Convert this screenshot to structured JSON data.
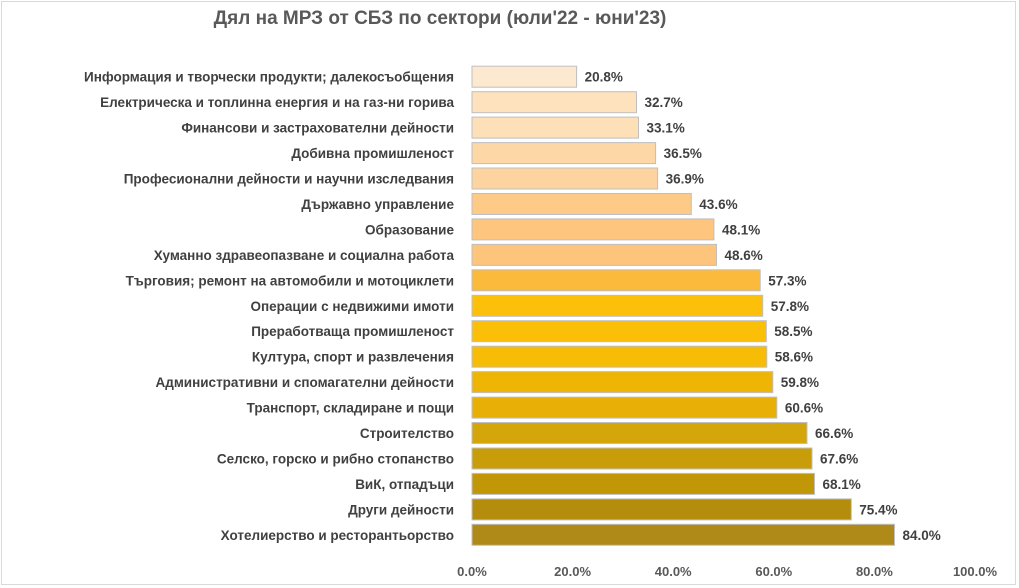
{
  "chart_data": {
    "type": "bar",
    "orientation": "horizontal",
    "title": "Дял на МРЗ от СБЗ по сектори (юли'22 - юни'23)",
    "xlabel": "",
    "ylabel": "",
    "xlim": [
      0,
      100
    ],
    "x_ticks": [
      "0.0%",
      "20.0%",
      "40.0%",
      "60.0%",
      "80.0%",
      "100.0%"
    ],
    "grid": false,
    "legend": "none",
    "categories": [
      "Информация и творчески продукти; далекосъобщения",
      "Електрическа и топлинна енергия и на газ-ни горива",
      "Финансови и застрахователни дейности",
      "Добивна промишленост",
      "Професионални дейности и научни изследвания",
      "Държавно управление",
      "Образование",
      "Хуманно здравеопазване и социална работа",
      "Търговия; ремонт на автомобили и мотоциклети",
      "Операции с недвижими имоти",
      "Преработваща промишленост",
      "Култура, спорт и развлечения",
      "Административни и спомагателни дейности",
      "Транспорт, складиране и пощи",
      "Строителство",
      "Селско, горско и рибно стопанство",
      "ВиК, отпадъци",
      "Други дейности",
      "Хотелиерство и ресторантьорство"
    ],
    "values": [
      20.8,
      32.7,
      33.1,
      36.5,
      36.9,
      43.6,
      48.1,
      48.6,
      57.3,
      57.8,
      58.5,
      58.6,
      59.8,
      60.6,
      66.6,
      67.6,
      68.1,
      75.4,
      84.0
    ],
    "data_labels": [
      "20.8%",
      "32.7%",
      "33.1%",
      "36.5%",
      "36.9%",
      "43.6%",
      "48.1%",
      "48.6%",
      "57.3%",
      "57.8%",
      "58.5%",
      "58.6%",
      "59.8%",
      "60.6%",
      "66.6%",
      "67.6%",
      "68.1%",
      "75.4%",
      "84.0%"
    ],
    "colors": [
      "#fde9d0",
      "#fde2bd",
      "#fde0b8",
      "#fdd7a6",
      "#fdd49f",
      "#fdca88",
      "#fdc57e",
      "#fdc47c",
      "#fcba3c",
      "#fdc00a",
      "#fcbf08",
      "#f7bc05",
      "#efb505",
      "#e8b006",
      "#d4a60a",
      "#c99c0a",
      "#c19708",
      "#b48d0d",
      "#b08a18"
    ],
    "bar_border_color": "#bfbfbf"
  }
}
